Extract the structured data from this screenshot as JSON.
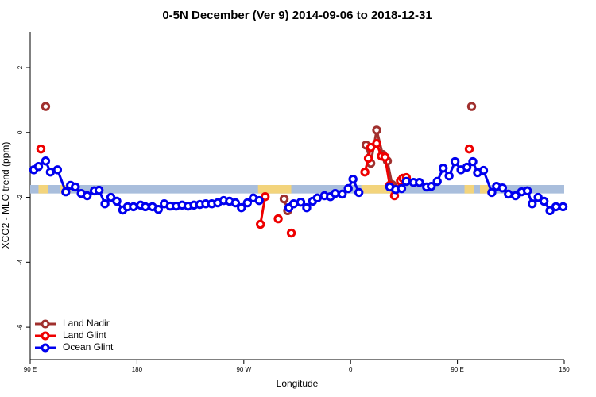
{
  "chart_data": {
    "type": "line",
    "title": "0-5N December (Ver 9)   2014-09-06 to 2018-12-31",
    "x_label": "Longitude",
    "y_label": "XCO2 - MLO trend (ppm)",
    "xlim": [
      90,
      540
    ],
    "ylim": [
      -7,
      3.1
    ],
    "xticks": [
      {
        "value": 90,
        "label": "90 E"
      },
      180,
      {
        "value": 270,
        "label": "90 W"
      },
      {
        "value": 360,
        "label": "0"
      },
      {
        "value": 450,
        "label": "90 E"
      },
      {
        "value": 540,
        "label": "180"
      }
    ],
    "yticks": [
      -6,
      -4,
      -2,
      0,
      2
    ],
    "legend": "bottom-left",
    "band": {
      "ylim": [
        -1.88,
        -1.62
      ],
      "color": "#a9bedc",
      "highlight_color": "#f3d47c",
      "highlights": [
        [
          97,
          105
        ],
        [
          115,
          124
        ],
        [
          282,
          310
        ],
        [
          369,
          399
        ],
        [
          456,
          464
        ],
        [
          469,
          476
        ]
      ]
    },
    "series": [
      {
        "name": "Land Nadir",
        "color": "#a0302e",
        "x": [
          103,
          null,
          304,
          307,
          null,
          373,
          377,
          382,
          387,
          391,
          395,
          null,
          462
        ],
        "values": [
          0.8,
          null,
          -2.05,
          -2.41,
          null,
          -0.39,
          -0.95,
          0.07,
          -0.68,
          -0.88,
          -1.61,
          null,
          0.8
        ]
      },
      {
        "name": "Land Glint",
        "color": "#ee0000",
        "x": [
          99,
          null,
          284,
          288,
          null,
          299,
          null,
          310,
          null,
          372,
          375,
          377,
          382,
          386,
          389,
          393,
          397,
          402,
          404,
          407,
          null,
          460
        ],
        "values": [
          -0.51,
          null,
          -2.83,
          -1.98,
          null,
          -2.66,
          null,
          -3.1,
          null,
          -1.22,
          -0.8,
          -0.46,
          -0.34,
          -0.73,
          -0.76,
          -1.63,
          -1.95,
          -1.49,
          -1.41,
          -1.39,
          null,
          -0.51
        ]
      },
      {
        "name": "Ocean Glint",
        "color": "#0000ee",
        "x": [
          93,
          97,
          103,
          107,
          113,
          120,
          124,
          128,
          133,
          138,
          144,
          148,
          153,
          158,
          163,
          168,
          172,
          177,
          183,
          187,
          193,
          198,
          203,
          208,
          213,
          218,
          223,
          228,
          233,
          238,
          243,
          248,
          253,
          258,
          263,
          268,
          273,
          278,
          283,
          null,
          308,
          312,
          318,
          323,
          328,
          332,
          338,
          343,
          347,
          353,
          358,
          362,
          367,
          null,
          393,
          398,
          403,
          407,
          413,
          418,
          424,
          428,
          433,
          438,
          443,
          448,
          453,
          458,
          463,
          467,
          472,
          479,
          483,
          488,
          493,
          499,
          504,
          509,
          513,
          518,
          523,
          528,
          533,
          539
        ],
        "values": [
          -1.15,
          -1.05,
          -0.88,
          -1.22,
          -1.15,
          -1.83,
          -1.63,
          -1.68,
          -1.88,
          -1.95,
          -1.8,
          -1.78,
          -2.2,
          -2.0,
          -2.12,
          -2.39,
          -2.29,
          -2.29,
          -2.24,
          -2.29,
          -2.29,
          -2.37,
          -2.2,
          -2.27,
          -2.27,
          -2.24,
          -2.27,
          -2.24,
          -2.22,
          -2.2,
          -2.2,
          -2.17,
          -2.1,
          -2.12,
          -2.17,
          -2.32,
          -2.17,
          -2.02,
          -2.1,
          null,
          -2.32,
          -2.2,
          -2.15,
          -2.32,
          -2.12,
          -2.02,
          -1.95,
          -1.98,
          -1.88,
          -1.9,
          -1.73,
          -1.44,
          -1.85,
          null,
          -1.68,
          -1.76,
          -1.73,
          -1.51,
          -1.54,
          -1.54,
          -1.68,
          -1.66,
          -1.51,
          -1.1,
          -1.34,
          -0.9,
          -1.15,
          -1.07,
          -0.9,
          -1.24,
          -1.17,
          -1.85,
          -1.66,
          -1.71,
          -1.9,
          -1.95,
          -1.83,
          -1.8,
          -2.2,
          -2.0,
          -2.12,
          -2.41,
          -2.29,
          -2.29
        ]
      }
    ]
  }
}
